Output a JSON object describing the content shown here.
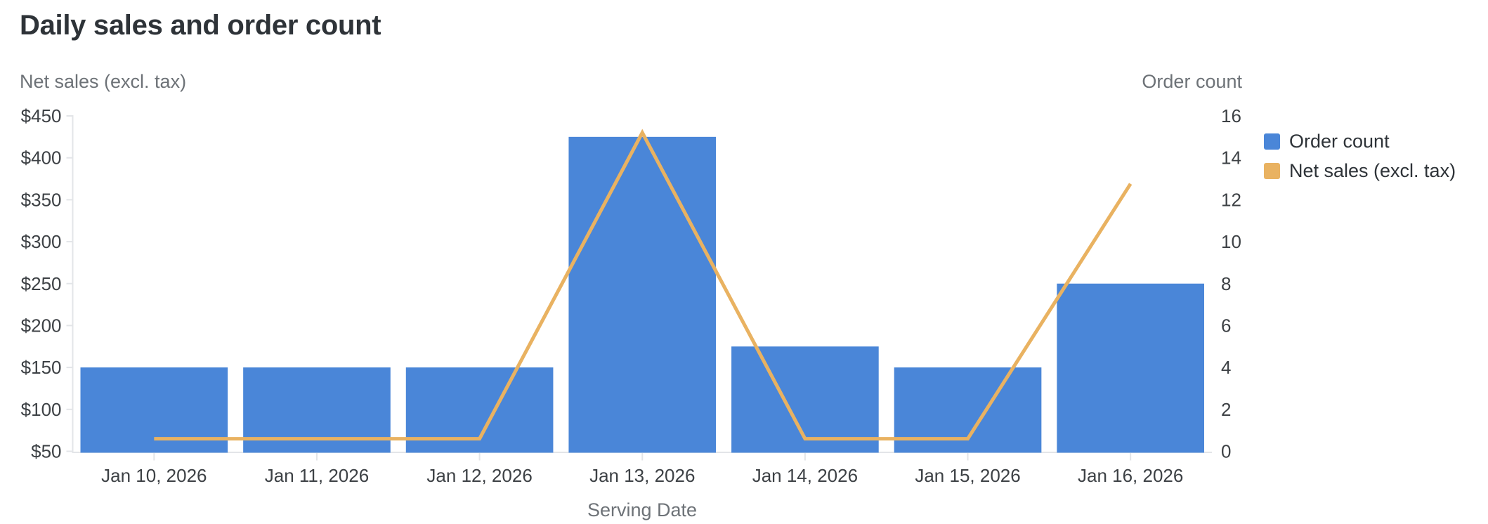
{
  "title": "Daily sales and order count",
  "axes": {
    "left_title": "Net sales (excl. tax)",
    "right_title": "Order count",
    "x_title": "Serving Date"
  },
  "legend": {
    "items": [
      {
        "label": "Order count",
        "color": "#4a86d8"
      },
      {
        "label": "Net sales (excl. tax)",
        "color": "#e9b261"
      }
    ]
  },
  "chart_data": {
    "type": "bar",
    "title": "Daily sales and order count",
    "xlabel": "Serving Date",
    "categories": [
      "Jan 10, 2026",
      "Jan 11, 2026",
      "Jan 12, 2026",
      "Jan 13, 2026",
      "Jan 14, 2026",
      "Jan 15, 2026",
      "Jan 16, 2026"
    ],
    "series": [
      {
        "name": "Order count",
        "type": "bar",
        "axis": "right",
        "color": "#4a86d8",
        "values": [
          4,
          4,
          4,
          15,
          5,
          4,
          8
        ]
      },
      {
        "name": "Net sales (excl. tax)",
        "type": "line",
        "axis": "left",
        "color": "#e9b261",
        "values": [
          65,
          65,
          65,
          430,
          65,
          65,
          369
        ]
      }
    ],
    "axis_left": {
      "label": "Net sales (excl. tax)",
      "min": 50,
      "max": 450,
      "step": 50,
      "tick_prefix": "$"
    },
    "axis_right": {
      "label": "Order count",
      "min": 0,
      "max": 16,
      "step": 2
    },
    "legend_position": "right",
    "grid": false
  },
  "style": {
    "tick_label_color": "#3d4145",
    "axis_title_color": "#6d7277",
    "title_color": "#2e3338",
    "axis_line_color": "#e3e5e8",
    "background": "#ffffff"
  }
}
